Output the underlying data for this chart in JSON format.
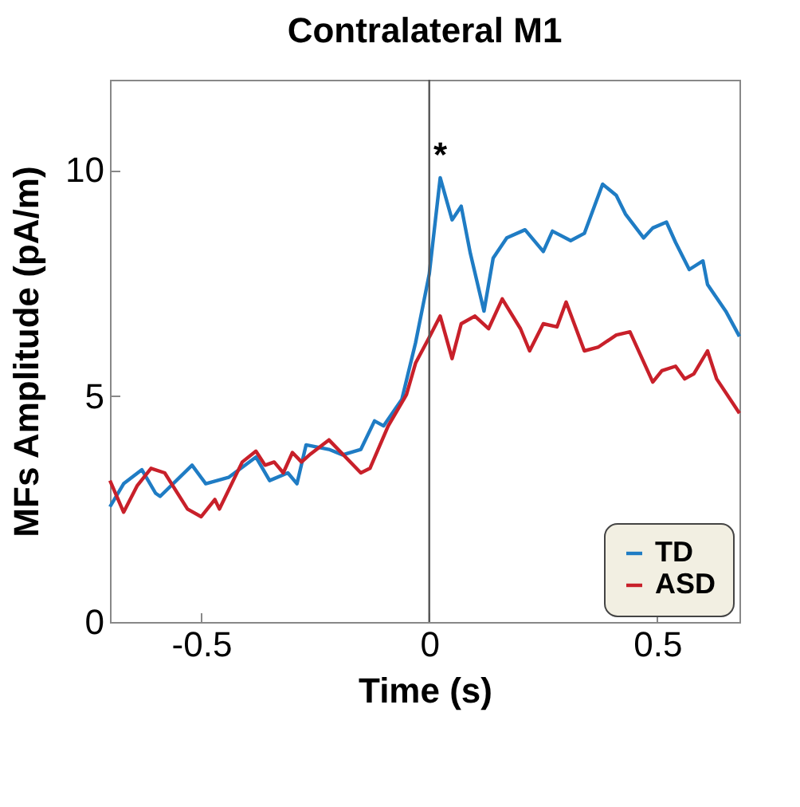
{
  "chart_data": {
    "type": "line",
    "title": "Contralateral M1",
    "xlabel": "Time (s)",
    "ylabel": "MFs Amplitude (pA/m)",
    "xlim": [
      -0.7,
      0.68
    ],
    "ylim": [
      0,
      12
    ],
    "xticks": [
      -0.5,
      0,
      0.5
    ],
    "yticks": [
      0,
      5,
      10
    ],
    "grid": false,
    "legend": "bottom right",
    "line_style": "solid",
    "marker": "none",
    "ref_lines": [
      {
        "axis": "x",
        "value": 0,
        "color": "#555555"
      }
    ],
    "annotations": [
      {
        "text": "*",
        "x": 0.024,
        "y": 9.83
      }
    ],
    "series": [
      {
        "name": "TD",
        "color": "#1f7cc4",
        "x": [
          -0.7,
          -0.67,
          -0.63,
          -0.6,
          -0.59,
          -0.52,
          -0.49,
          -0.44,
          -0.38,
          -0.35,
          -0.31,
          -0.29,
          -0.27,
          -0.22,
          -0.19,
          -0.15,
          -0.12,
          -0.1,
          -0.06,
          -0.03,
          0.0,
          0.024,
          0.05,
          0.07,
          0.09,
          0.12,
          0.14,
          0.17,
          0.21,
          0.25,
          0.27,
          0.31,
          0.34,
          0.38,
          0.41,
          0.43,
          0.47,
          0.49,
          0.52,
          0.54,
          0.57,
          0.6,
          0.61,
          0.65,
          0.68
        ],
        "values": [
          2.55,
          3.06,
          3.37,
          2.85,
          2.78,
          3.47,
          3.06,
          3.2,
          3.65,
          3.13,
          3.3,
          3.06,
          3.92,
          3.82,
          3.7,
          3.82,
          4.45,
          4.34,
          4.93,
          6.18,
          7.7,
          9.83,
          8.9,
          9.2,
          8.16,
          6.88,
          8.05,
          8.5,
          8.68,
          8.2,
          8.65,
          8.44,
          8.6,
          9.69,
          9.44,
          9.03,
          8.5,
          8.72,
          8.85,
          8.4,
          7.8,
          7.99,
          7.47,
          6.88,
          6.32
        ]
      },
      {
        "name": "ASD",
        "color": "#c8202a",
        "x": [
          -0.7,
          -0.67,
          -0.64,
          -0.61,
          -0.58,
          -0.53,
          -0.5,
          -0.47,
          -0.46,
          -0.41,
          -0.38,
          -0.36,
          -0.34,
          -0.32,
          -0.3,
          -0.28,
          -0.26,
          -0.22,
          -0.15,
          -0.13,
          -0.09,
          -0.05,
          -0.03,
          0.0,
          0.024,
          0.05,
          0.07,
          0.1,
          0.13,
          0.16,
          0.2,
          0.22,
          0.25,
          0.28,
          0.3,
          0.34,
          0.37,
          0.41,
          0.44,
          0.49,
          0.51,
          0.54,
          0.56,
          0.58,
          0.61,
          0.63,
          0.68
        ],
        "values": [
          3.13,
          2.43,
          3.02,
          3.4,
          3.3,
          2.5,
          2.33,
          2.71,
          2.5,
          3.54,
          3.78,
          3.47,
          3.54,
          3.3,
          3.75,
          3.54,
          3.72,
          4.03,
          3.3,
          3.4,
          4.34,
          5.03,
          5.73,
          6.3,
          6.77,
          5.83,
          6.6,
          6.77,
          6.49,
          7.15,
          6.49,
          6.0,
          6.6,
          6.53,
          7.08,
          6.0,
          6.08,
          6.35,
          6.42,
          5.31,
          5.56,
          5.66,
          5.38,
          5.49,
          6.0,
          5.38,
          4.62
        ]
      }
    ]
  }
}
